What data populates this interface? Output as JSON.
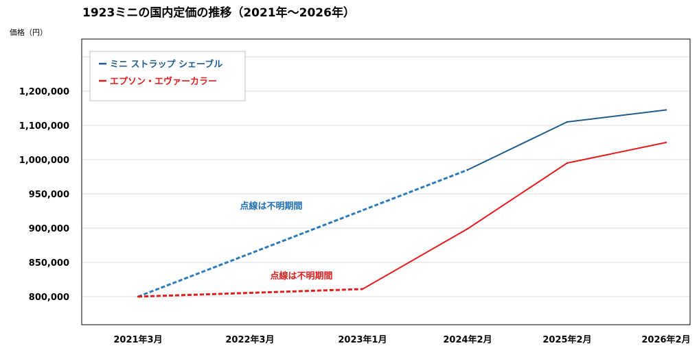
{
  "chart_data": {
    "type": "line",
    "title": "1923ミニの国内定価の推移（2021年～2026年）",
    "ylabel": "価格（円）",
    "xlabel": "",
    "categories": [
      "2021年3月",
      "2022年3月",
      "2023年1月",
      "2024年2月",
      "2025年2月",
      "2026年2月"
    ],
    "y_ticks": [
      "800,000",
      "850,000",
      "900,000",
      "950,000",
      "1,000,000",
      "1,100,000",
      "1,200,000"
    ],
    "series": [
      {
        "name": "ミニ ストラップ シェーブル",
        "color": "#1f5a8c",
        "points": [
          {
            "cat": "2021年3月",
            "y": 800000
          },
          {
            "cat": "2024年2月",
            "y": 985000
          },
          {
            "cat": "2025年2月",
            "y": 1110000
          },
          {
            "cat": "2026年2月",
            "y": 1145000
          }
        ],
        "dotted_segment": [
          0,
          1
        ],
        "dotted_color": "#2a7ab9",
        "annotation": "点線は不明期間",
        "annotation_color": "#1f6fb3"
      },
      {
        "name": "エプソン・エヴァーカラー",
        "color": "#e01c1c",
        "points": [
          {
            "cat": "2021年3月",
            "y": 800000
          },
          {
            "cat": "2023年1月",
            "y": 811000
          },
          {
            "cat": "2024年2月",
            "y": 899000
          },
          {
            "cat": "2025年2月",
            "y": 995000
          },
          {
            "cat": "2026年2月",
            "y": 1050000
          }
        ],
        "dotted_segment": [
          0,
          1
        ],
        "dotted_color": "#e01c1c",
        "annotation": "点線は不明期間",
        "annotation_color": "#e01c1c"
      }
    ],
    "grid": true,
    "legend_position": "top-left"
  }
}
